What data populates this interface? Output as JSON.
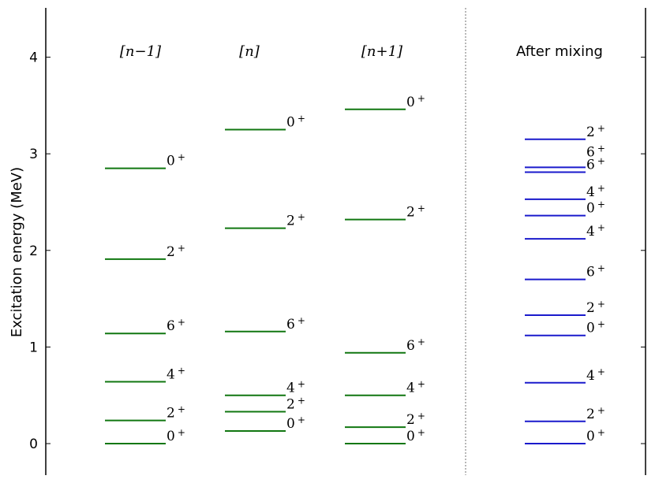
{
  "chart_data": {
    "type": "level-scheme",
    "title": "",
    "xlabel": "",
    "ylabel": "Excitation energy (MeV)",
    "ylim": [
      -0.3,
      4.5
    ],
    "yticks": [
      0,
      1,
      2,
      3,
      4
    ],
    "grid": false,
    "series": [
      {
        "title": "[n−1]",
        "color": "#117711",
        "levels": [
          {
            "energy": 0.0,
            "label": "0",
            "parity": "+"
          },
          {
            "energy": 0.24,
            "label": "2",
            "parity": "+"
          },
          {
            "energy": 0.64,
            "label": "4",
            "parity": "+"
          },
          {
            "energy": 1.14,
            "label": "6",
            "parity": "+"
          },
          {
            "energy": 1.91,
            "label": "2",
            "parity": "+"
          },
          {
            "energy": 2.85,
            "label": "0",
            "parity": "+"
          }
        ]
      },
      {
        "title": "[n]",
        "color": "#117711",
        "levels": [
          {
            "energy": 0.13,
            "label": "0",
            "parity": "+"
          },
          {
            "energy": 0.33,
            "label": "2",
            "parity": "+"
          },
          {
            "energy": 0.5,
            "label": "4",
            "parity": "+"
          },
          {
            "energy": 1.16,
            "label": "6",
            "parity": "+"
          },
          {
            "energy": 2.23,
            "label": "2",
            "parity": "+"
          },
          {
            "energy": 3.25,
            "label": "0",
            "parity": "+"
          }
        ]
      },
      {
        "title": "[n+1]",
        "color": "#117711",
        "levels": [
          {
            "energy": 0.0,
            "label": "0",
            "parity": "+"
          },
          {
            "energy": 0.17,
            "label": "2",
            "parity": "+"
          },
          {
            "energy": 0.5,
            "label": "4",
            "parity": "+"
          },
          {
            "energy": 0.94,
            "label": "6",
            "parity": "+"
          },
          {
            "energy": 2.32,
            "label": "2",
            "parity": "+"
          },
          {
            "energy": 3.46,
            "label": "0",
            "parity": "+"
          }
        ]
      },
      {
        "title": "After mixing",
        "color": "#1a1acc",
        "levels": [
          {
            "energy": 0.0,
            "label": "0",
            "parity": "+"
          },
          {
            "energy": 0.23,
            "label": "2",
            "parity": "+"
          },
          {
            "energy": 0.63,
            "label": "4",
            "parity": "+"
          },
          {
            "energy": 1.12,
            "label": "0",
            "parity": "+"
          },
          {
            "energy": 1.33,
            "label": "2",
            "parity": "+"
          },
          {
            "energy": 1.7,
            "label": "6",
            "parity": "+"
          },
          {
            "energy": 2.12,
            "label": "4",
            "parity": "+"
          },
          {
            "energy": 2.36,
            "label": "0",
            "parity": "+"
          },
          {
            "energy": 2.53,
            "label": "4",
            "parity": "+"
          },
          {
            "energy": 2.81,
            "label": "6",
            "parity": "+"
          },
          {
            "energy": 2.86,
            "label": "6",
            "parity": "+"
          },
          {
            "energy": 3.15,
            "label": "2",
            "parity": "+"
          }
        ]
      }
    ]
  }
}
